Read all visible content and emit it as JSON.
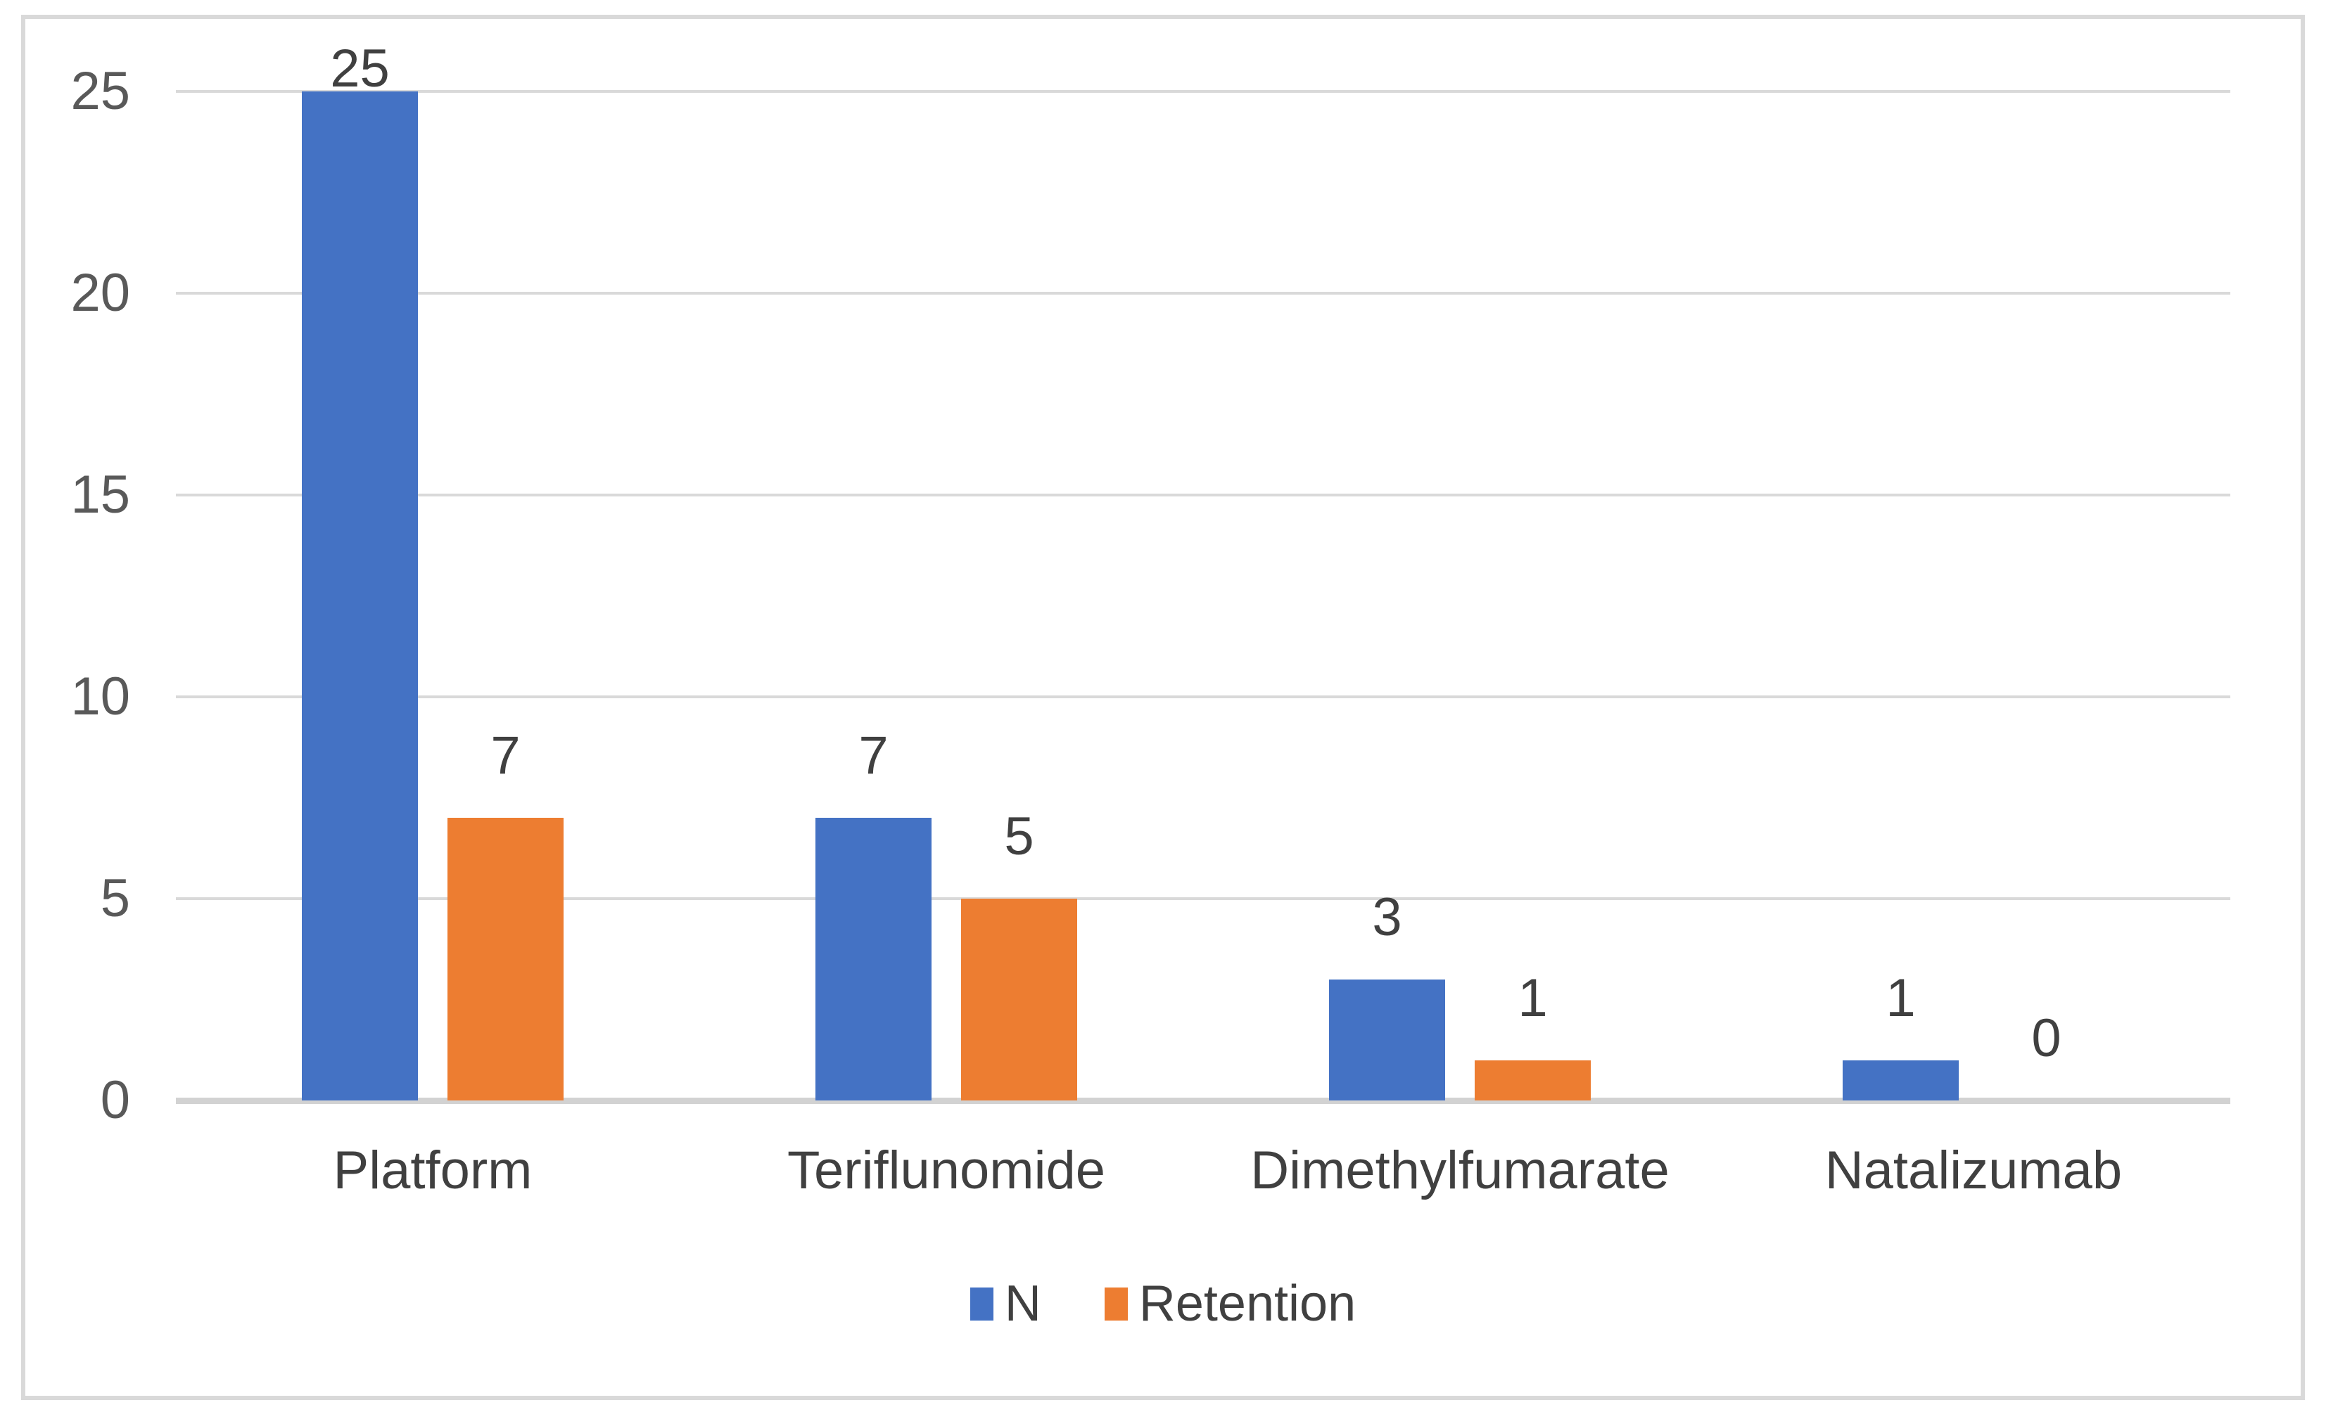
{
  "chart_data": {
    "type": "bar",
    "title": "",
    "xlabel": "",
    "ylabel": "",
    "categories": [
      "Platform",
      "Teriflunomide",
      "Dimethylfumarate",
      "Natalizumab"
    ],
    "series": [
      {
        "name": "N",
        "color": "#4472C4",
        "values": [
          25,
          7,
          3,
          1
        ]
      },
      {
        "name": "Retention",
        "color": "#ED7D31",
        "values": [
          7,
          5,
          1,
          0
        ]
      }
    ],
    "yticks": [
      0,
      5,
      10,
      15,
      20,
      25
    ],
    "ylim": [
      0,
      25
    ],
    "grid": true,
    "data_labels": true,
    "legend_position": "bottom"
  },
  "colors": {
    "gridline": "#D9D9D9",
    "axis_line": "#D2D2D2",
    "axis_text": "#595959",
    "label_text": "#404040",
    "frame_border": "#D9D9D9",
    "background": "#FFFFFF"
  }
}
